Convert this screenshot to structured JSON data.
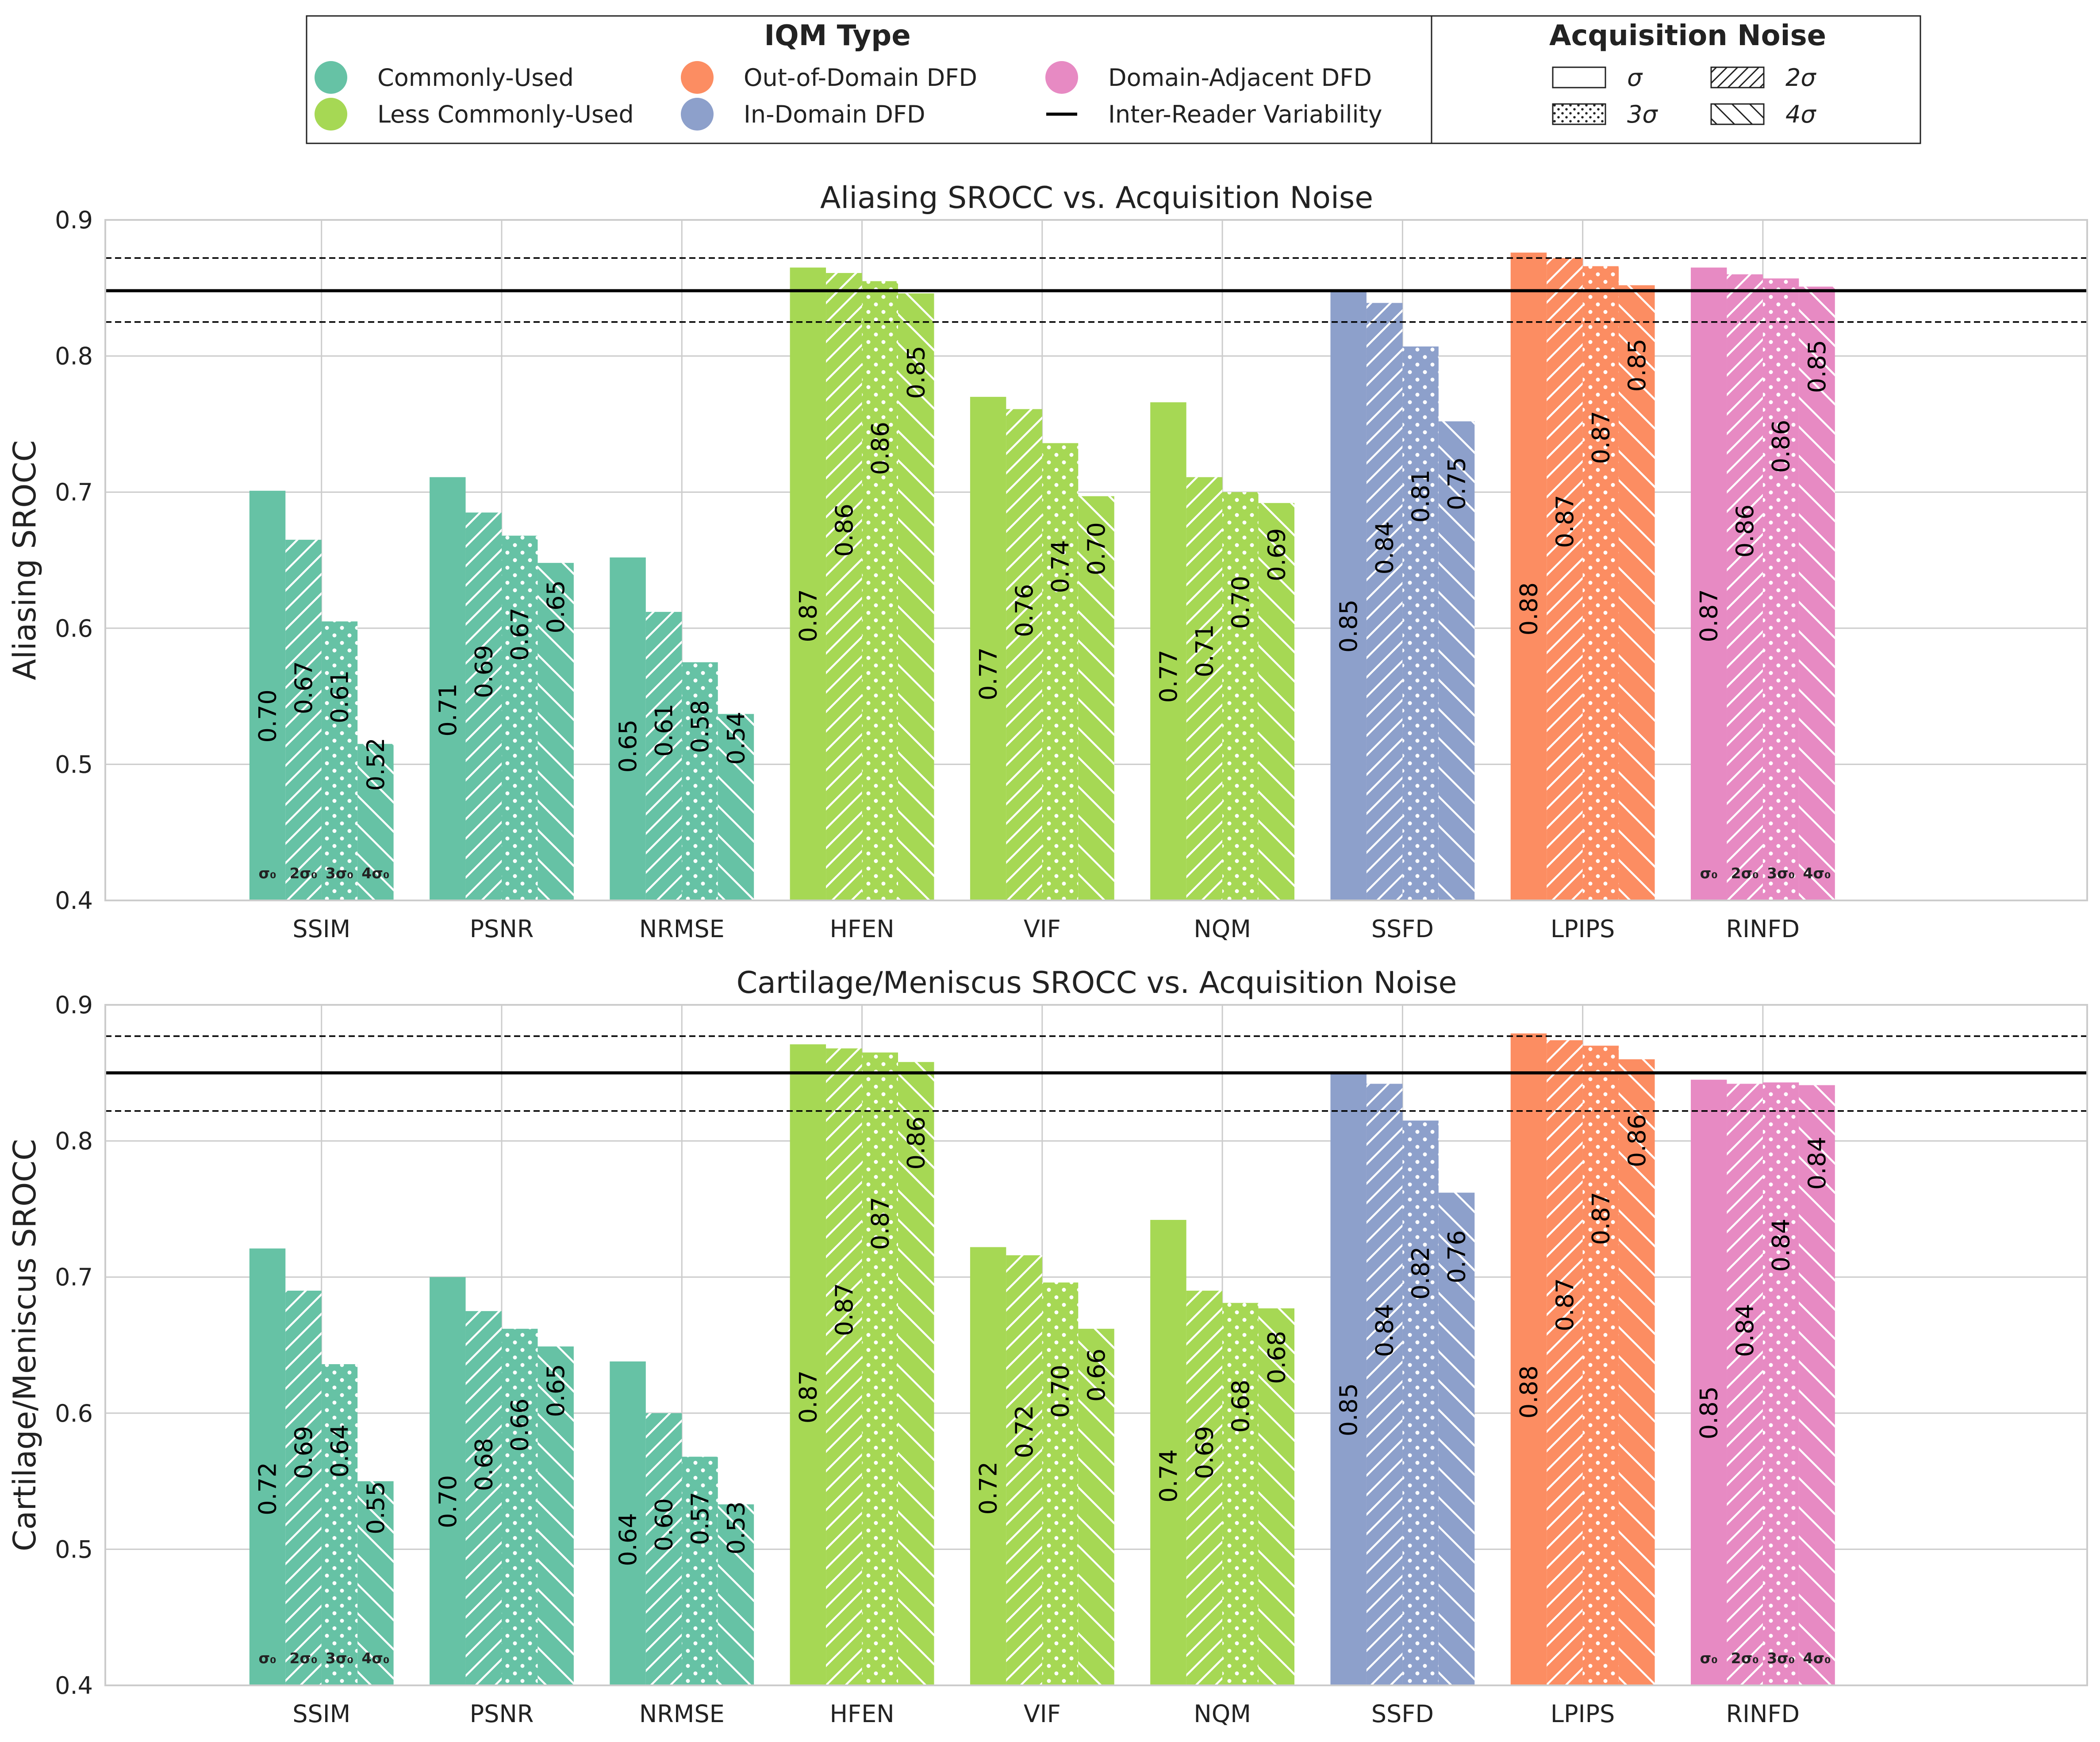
{
  "legend": {
    "iqm_title": "IQM Type",
    "iqm_items": [
      {
        "label": "Commonly-Used",
        "color": "#66c2a5",
        "marker": "circle"
      },
      {
        "label": "Less Commonly-Used",
        "color": "#a6d854",
        "marker": "circle"
      },
      {
        "label": "Out-of-Domain DFD",
        "color": "#fc8d62",
        "marker": "circle"
      },
      {
        "label": "In-Domain DFD",
        "color": "#8da0cb",
        "marker": "circle"
      },
      {
        "label": "Domain-Adjacent DFD",
        "color": "#e78ac3",
        "marker": "circle"
      },
      {
        "label": "Inter-Reader Variability",
        "color": "#000000",
        "marker": "line"
      }
    ],
    "noise_title": "Acquisition Noise",
    "noise_items": [
      {
        "label": "σ",
        "pattern": "solid"
      },
      {
        "label": "2σ",
        "pattern": "hatch-slash"
      },
      {
        "label": "3σ",
        "pattern": "dots"
      },
      {
        "label": "4σ",
        "pattern": "hatch-backslash"
      }
    ]
  },
  "noise_labels": [
    "σ₀",
    "2σ₀",
    "3σ₀",
    "4σ₀"
  ],
  "chart_data": [
    {
      "type": "bar",
      "title": "Aliasing SROCC vs. Acquisition Noise",
      "ylabel": "Aliasing SROCC",
      "xlabel": "",
      "ylim": [
        0.4,
        0.9
      ],
      "yticks": [
        "0.4",
        "0.5",
        "0.6",
        "0.7",
        "0.8",
        "0.9"
      ],
      "grid": true,
      "categories": [
        "SSIM",
        "PSNR",
        "NRMSE",
        "HFEN",
        "VIF",
        "NQM",
        "SSFD",
        "LPIPS",
        "RINFD"
      ],
      "category_groups": [
        "Commonly-Used",
        "Commonly-Used",
        "Commonly-Used",
        "Less Commonly-Used",
        "Less Commonly-Used",
        "Less Commonly-Used",
        "In-Domain DFD",
        "Out-of-Domain DFD",
        "Domain-Adjacent DFD"
      ],
      "series": [
        {
          "name": "σ",
          "values": [
            0.701,
            0.711,
            0.652,
            0.865,
            0.77,
            0.766,
            0.848,
            0.876,
            0.865
          ],
          "labels": [
            "0.70",
            "0.71",
            "0.65",
            "0.87",
            "0.77",
            "0.77",
            "0.85",
            "0.88",
            "0.87"
          ]
        },
        {
          "name": "2σ",
          "values": [
            0.665,
            0.685,
            0.612,
            0.861,
            0.761,
            0.711,
            0.839,
            0.872,
            0.86
          ],
          "labels": [
            "0.67",
            "0.69",
            "0.61",
            "0.86",
            "0.76",
            "0.71",
            "0.84",
            "0.87",
            "0.86"
          ]
        },
        {
          "name": "3σ",
          "values": [
            0.605,
            0.668,
            0.575,
            0.855,
            0.736,
            0.7,
            0.807,
            0.866,
            0.857
          ],
          "labels": [
            "0.61",
            "0.67",
            "0.58",
            "0.86",
            "0.74",
            "0.70",
            "0.81",
            "0.87",
            "0.86"
          ]
        },
        {
          "name": "4σ",
          "values": [
            0.515,
            0.648,
            0.537,
            0.846,
            0.697,
            0.692,
            0.752,
            0.852,
            0.851
          ],
          "labels": [
            "0.52",
            "0.65",
            "0.54",
            "0.85",
            "0.70",
            "0.69",
            "0.75",
            "0.85",
            "0.85"
          ]
        }
      ],
      "inter_reader": {
        "mean": 0.848,
        "lower": 0.825,
        "upper": 0.872
      }
    },
    {
      "type": "bar",
      "title": "Cartilage/Meniscus SROCC vs. Acquisition Noise",
      "ylabel": "Cartilage/Meniscus SROCC",
      "xlabel": "",
      "ylim": [
        0.4,
        0.9
      ],
      "yticks": [
        "0.4",
        "0.5",
        "0.6",
        "0.7",
        "0.8",
        "0.9"
      ],
      "grid": true,
      "categories": [
        "SSIM",
        "PSNR",
        "NRMSE",
        "HFEN",
        "VIF",
        "NQM",
        "SSFD",
        "LPIPS",
        "RINFD"
      ],
      "category_groups": [
        "Commonly-Used",
        "Commonly-Used",
        "Commonly-Used",
        "Less Commonly-Used",
        "Less Commonly-Used",
        "Less Commonly-Used",
        "In-Domain DFD",
        "Out-of-Domain DFD",
        "Domain-Adjacent DFD"
      ],
      "series": [
        {
          "name": "σ",
          "values": [
            0.721,
            0.7,
            0.638,
            0.871,
            0.722,
            0.742,
            0.85,
            0.879,
            0.845
          ],
          "labels": [
            "0.72",
            "0.70",
            "0.64",
            "0.87",
            "0.72",
            "0.74",
            "0.85",
            "0.88",
            "0.85"
          ]
        },
        {
          "name": "2σ",
          "values": [
            0.69,
            0.675,
            0.6,
            0.868,
            0.716,
            0.69,
            0.842,
            0.874,
            0.842
          ],
          "labels": [
            "0.69",
            "0.68",
            "0.60",
            "0.87",
            "0.72",
            "0.69",
            "0.84",
            "0.87",
            "0.84"
          ]
        },
        {
          "name": "3σ",
          "values": [
            0.636,
            0.662,
            0.568,
            0.865,
            0.696,
            0.681,
            0.815,
            0.87,
            0.843
          ],
          "labels": [
            "0.64",
            "0.66",
            "0.57",
            "0.87",
            "0.70",
            "0.68",
            "0.82",
            "0.87",
            "0.84"
          ]
        },
        {
          "name": "4σ",
          "values": [
            0.55,
            0.649,
            0.533,
            0.858,
            0.662,
            0.677,
            0.762,
            0.86,
            0.841
          ],
          "labels": [
            "0.55",
            "0.65",
            "0.53",
            "0.86",
            "0.66",
            "0.68",
            "0.76",
            "0.86",
            "0.84"
          ]
        }
      ],
      "inter_reader": {
        "mean": 0.85,
        "lower": 0.822,
        "upper": 0.877
      }
    }
  ]
}
